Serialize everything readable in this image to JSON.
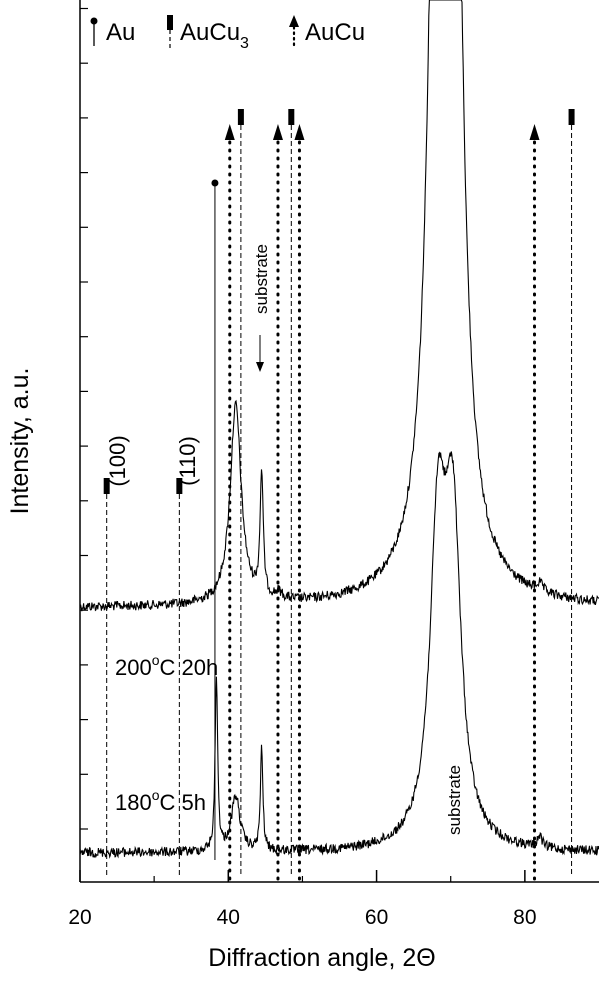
{
  "chart_data": {
    "type": "line",
    "xlabel": "Diffraction angle, 2Θ",
    "ylabel": "Intensity, a.u.",
    "xlim": [
      20,
      90
    ],
    "xticks": [
      20,
      40,
      60,
      80
    ],
    "grid": false,
    "legend": {
      "placement": "top-left",
      "entries": [
        {
          "label": "Au",
          "marker": "circle-pin",
          "line": "solid"
        },
        {
          "label": "AuCu",
          "label_sub": "3",
          "marker": "rectangle-pin",
          "line": "dashed"
        },
        {
          "label": "AuCu",
          "marker": "arrow-pin",
          "line": "dotted"
        }
      ]
    },
    "reference_lines": {
      "Au": [
        38.2
      ],
      "AuCu3": [
        23.6,
        33.4,
        41.7,
        48.5,
        86.3
      ],
      "AuCu": [
        40.2,
        46.7,
        49.6,
        81.3
      ]
    },
    "miller_labels": [
      {
        "text": "(100)",
        "x": 23.6
      },
      {
        "text": "(110)",
        "x": 33.4
      }
    ],
    "series": [
      {
        "name": "200°C 20h",
        "label_main": "200",
        "label_sup": "o",
        "label_rest": "C 20h",
        "baseline": 0.0,
        "peaks": [
          {
            "x": 41.0,
            "h": 3.62,
            "w": 0.9
          },
          {
            "x": 44.5,
            "h": 2.25,
            "w": 0.25
          },
          {
            "x": 46.8,
            "h": 0.12,
            "w": 0.6
          },
          {
            "x": 68.3,
            "h": 18,
            "w": 1.2
          },
          {
            "x": 70.3,
            "h": 18,
            "w": 1.2
          },
          {
            "x": 82.0,
            "h": 0.15,
            "w": 0.5
          }
        ]
      },
      {
        "name": "180°C 5h",
        "label_main": "180",
        "label_sup": "o",
        "label_rest": "C 5h",
        "baseline": -2.45,
        "peaks": [
          {
            "x": 38.4,
            "h": 3.2,
            "w": 0.2
          },
          {
            "x": 41.0,
            "h": 1.0,
            "w": 0.7
          },
          {
            "x": 44.5,
            "h": 1.85,
            "w": 0.2
          },
          {
            "x": 68.3,
            "h": 5.5,
            "w": 1.3
          },
          {
            "x": 70.3,
            "h": 5.5,
            "w": 1.3
          },
          {
            "x": 82.0,
            "h": 0.2,
            "w": 0.4
          }
        ]
      }
    ],
    "annotations": [
      {
        "text": "substrate",
        "x": 44.5,
        "orientation": "vertical",
        "arrow": true
      },
      {
        "text": "substrate",
        "x": 69.2,
        "orientation": "vertical",
        "arrow": false
      }
    ]
  }
}
